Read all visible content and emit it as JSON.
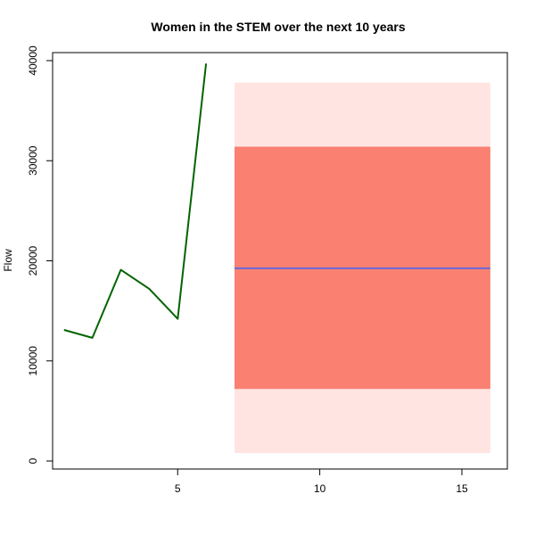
{
  "chart_data": {
    "type": "line",
    "title": "Women in the STEM over the next 10 years",
    "xlabel": "",
    "ylabel": "Flow",
    "xlim": [
      0.6,
      16.6
    ],
    "ylim": [
      -800,
      40800
    ],
    "x_ticks": [
      5,
      10,
      15
    ],
    "y_ticks": [
      0,
      10000,
      20000,
      30000,
      40000
    ],
    "grid": false,
    "history": {
      "x": [
        1,
        2,
        3,
        4,
        5,
        6
      ],
      "y": [
        13100,
        12300,
        19100,
        17200,
        14200,
        39700
      ],
      "color": "#006400"
    },
    "forecast": {
      "x_start": 7,
      "x_end": 16,
      "mean": 19250,
      "mean_color": "#6a6ad6",
      "interval_80": [
        7200,
        31400
      ],
      "interval_80_color": "#fa8072",
      "interval_95": [
        800,
        37800
      ],
      "interval_95_color": "#ffe4e1"
    }
  }
}
